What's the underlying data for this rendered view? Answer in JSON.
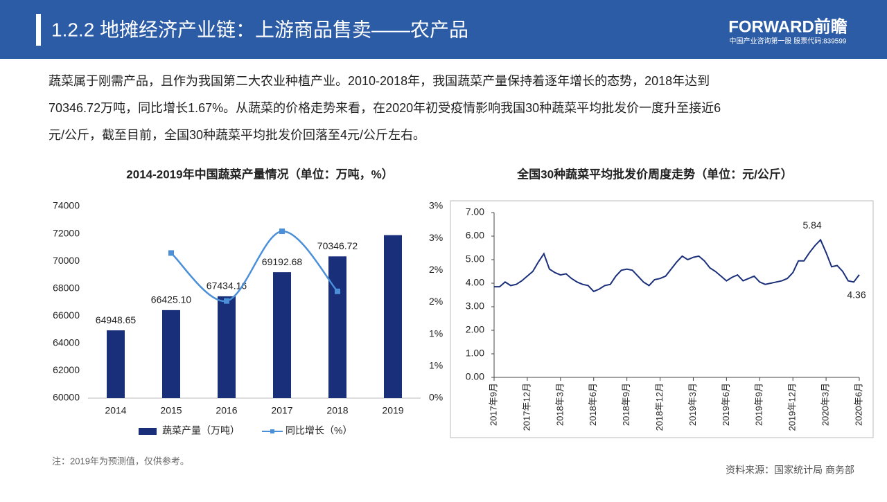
{
  "header": {
    "title": "1.2.2 地摊经济产业链：上游商品售卖——农产品",
    "logo": "FORWARD前瞻",
    "logo_sub": "中国产业咨询第一股  股票代码:839599"
  },
  "paragraph": [
    "蔬菜属于刚需产品，且作为我国第二大农业种植产业。2010-2018年，我国蔬菜产量保持着逐年增长的态势，2018年达到",
    "70346.72万吨，同比增长1.67%。从蔬菜的价格走势来看，在2020年初受疫情影响我国30种蔬菜平均批发价一度升至接近6",
    "元/公斤，截至目前，全国30种蔬菜平均批发价回落至4元/公斤左右。"
  ],
  "note": "注：2019年为预测值，仅供参考。",
  "source": "资料来源：国家统计局 商务部",
  "chart_data": [
    {
      "type": "bar",
      "title": "2014-2019年中国蔬菜产量情况（单位：万吨，%）",
      "categories": [
        "2014",
        "2015",
        "2016",
        "2017",
        "2018",
        "2019"
      ],
      "series": [
        {
          "name": "蔬菜产量（万吨）",
          "color": "#1a2f7a",
          "values": [
            64948.65,
            66425.1,
            67434.16,
            69192.68,
            70346.72,
            71900
          ],
          "value_labels": [
            "64948.65",
            "66425.10",
            "67434.16",
            "69192.68",
            "70346.72",
            null
          ]
        },
        {
          "name": "同比增长（%）",
          "type": "line",
          "axis": "y2",
          "color": "#4a8fd8",
          "values": [
            null,
            2.27,
            1.52,
            2.61,
            1.67,
            null
          ]
        }
      ],
      "ylim": [
        60000,
        74000
      ],
      "yticks": [
        60000,
        62000,
        64000,
        66000,
        68000,
        70000,
        72000,
        74000
      ],
      "y2lim": [
        0,
        3
      ],
      "y2ticks": [
        {
          "value": 0,
          "label": "0%"
        },
        {
          "value": 0.5,
          "label": "1%"
        },
        {
          "value": 1,
          "label": "1%"
        },
        {
          "value": 1.5,
          "label": "2%"
        },
        {
          "value": 2,
          "label": "2%"
        },
        {
          "value": 2.5,
          "label": "3%"
        },
        {
          "value": 3,
          "label": "3%"
        }
      ],
      "legend": "bottom"
    },
    {
      "type": "line",
      "title": "全国30种蔬菜平均批发价周度走势（单位：元/公斤）",
      "categories": [
        "2017年9月",
        null,
        null,
        null,
        null,
        null,
        "2017年12月",
        null,
        null,
        null,
        null,
        null,
        "2018年3月",
        null,
        null,
        null,
        null,
        null,
        "2018年6月",
        null,
        null,
        null,
        null,
        null,
        "2018年9月",
        null,
        null,
        null,
        null,
        null,
        "2018年12月",
        null,
        null,
        null,
        null,
        null,
        "2019年3月",
        null,
        null,
        null,
        null,
        null,
        "2019年6月",
        null,
        null,
        null,
        null,
        null,
        "2019年9月",
        null,
        null,
        null,
        null,
        null,
        "2019年12月",
        null,
        null,
        null,
        null,
        null,
        "2020年3月",
        null,
        null,
        null,
        null,
        null,
        "2020年6月"
      ],
      "values": [
        3.85,
        3.85,
        4.05,
        3.9,
        3.95,
        4.1,
        4.3,
        4.5,
        4.9,
        5.25,
        4.6,
        4.45,
        4.35,
        4.4,
        4.2,
        4.05,
        3.95,
        3.9,
        3.65,
        3.75,
        3.9,
        3.95,
        4.3,
        4.55,
        4.6,
        4.55,
        4.3,
        4.05,
        3.9,
        4.15,
        4.2,
        4.3,
        4.6,
        4.9,
        5.15,
        5.0,
        5.1,
        5.15,
        4.95,
        4.65,
        4.5,
        4.3,
        4.1,
        4.25,
        4.35,
        4.1,
        4.2,
        4.3,
        4.05,
        3.95,
        4.0,
        4.05,
        4.1,
        4.2,
        4.45,
        4.95,
        4.95,
        5.3,
        5.6,
        5.84,
        5.3,
        4.7,
        4.75,
        4.5,
        4.1,
        4.05,
        4.36
      ],
      "color": "#1a2f7a",
      "labeled_points": [
        59,
        66
      ],
      "ylim": [
        0,
        7
      ],
      "yticks": [
        {
          "value": 0,
          "label": "0.00"
        },
        {
          "value": 1,
          "label": "1.00"
        },
        {
          "value": 2,
          "label": "2.00"
        },
        {
          "value": 3,
          "label": "3.00"
        },
        {
          "value": 4,
          "label": "4.00"
        },
        {
          "value": 5,
          "label": "5.00"
        },
        {
          "value": 6,
          "label": "6.00"
        },
        {
          "value": 7,
          "label": "7.00"
        }
      ]
    }
  ]
}
